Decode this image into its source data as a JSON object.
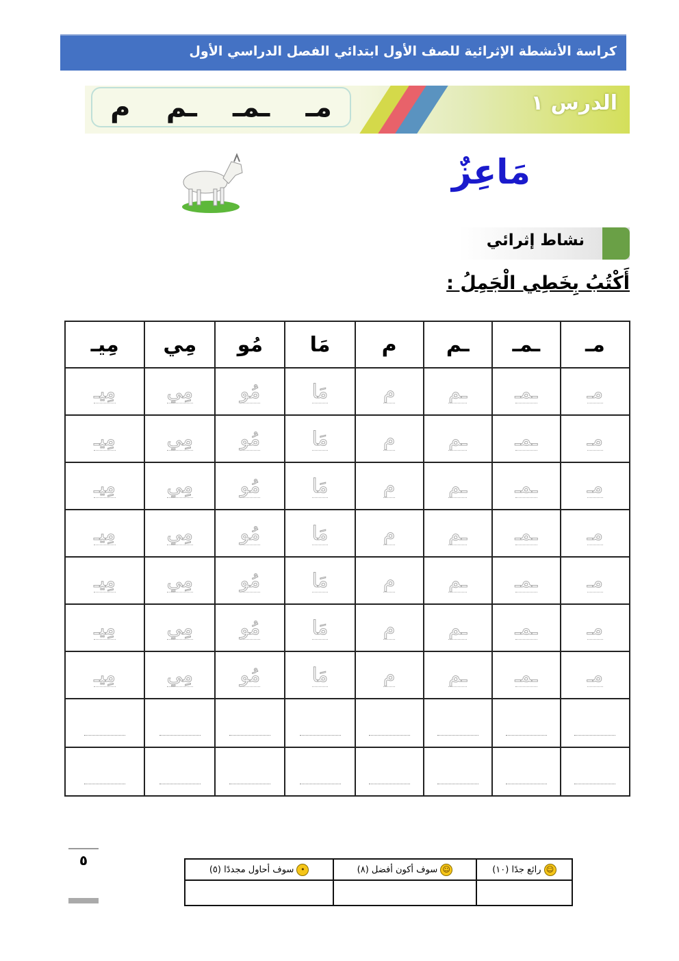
{
  "header": {
    "title": "كراسة الأنشطة الإثرائية للصف الأول ابتدائي الفصل الدراسي الأول"
  },
  "lesson": {
    "title": "الدرس ١",
    "letter_forms": [
      "مـ",
      "ـمـ",
      "ـم",
      "م"
    ],
    "stripe_colors": [
      "#d4d94a",
      "#e8626a",
      "#5a93c0"
    ]
  },
  "word": {
    "text": "مَاعِزٌ",
    "color": "#1a1acc",
    "image": "goat-illustration"
  },
  "activity": {
    "label": "نشاط إثرائي",
    "accent": "#6aa046"
  },
  "instruction": "أَكْتُبُ بِخَطِي الْجَمِلُ :",
  "practice_table": {
    "headers": [
      "مـ",
      "ـمـ",
      "ـم",
      "م",
      "مَا",
      "مُو",
      "مِي",
      "مِيـ"
    ],
    "tracing_rows": 7,
    "blank_rows": 2
  },
  "page_number": "٥",
  "rating": {
    "options": [
      {
        "icon": "grinning-face-icon",
        "label": "رائع جدًا (١٠)"
      },
      {
        "icon": "smiling-face-icon",
        "label": "سوف أكون أفضل (٨)"
      },
      {
        "icon": "neutral-face-icon",
        "label": "سوف أحاول مجددًا (٥)"
      }
    ]
  }
}
